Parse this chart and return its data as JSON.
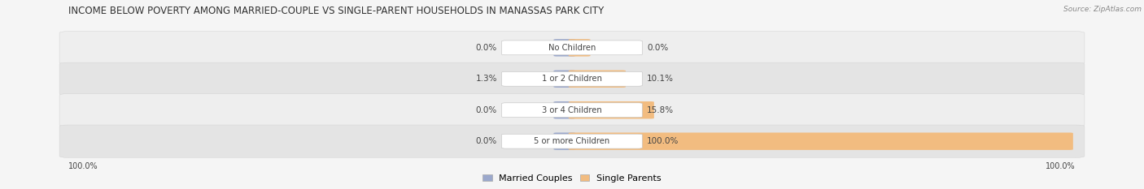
{
  "title": "INCOME BELOW POVERTY AMONG MARRIED-COUPLE VS SINGLE-PARENT HOUSEHOLDS IN MANASSAS PARK CITY",
  "source": "Source: ZipAtlas.com",
  "categories": [
    "No Children",
    "1 or 2 Children",
    "3 or 4 Children",
    "5 or more Children"
  ],
  "married_values": [
    0.0,
    1.3,
    0.0,
    0.0
  ],
  "single_values": [
    0.0,
    10.1,
    15.8,
    100.0
  ],
  "married_color": "#9ba8cc",
  "single_color": "#f2bc80",
  "row_bg_even": "#eeeeee",
  "row_bg_odd": "#e4e4e4",
  "max_value": 100.0,
  "title_fontsize": 8.5,
  "label_fontsize": 7.5,
  "legend_fontsize": 8,
  "center_label_color": "#444444",
  "value_label_color": "#444444",
  "left_axis_label": "100.0%",
  "right_axis_label": "100.0%",
  "background_color": "#f5f5f5",
  "source_color": "#888888",
  "title_color": "#333333"
}
